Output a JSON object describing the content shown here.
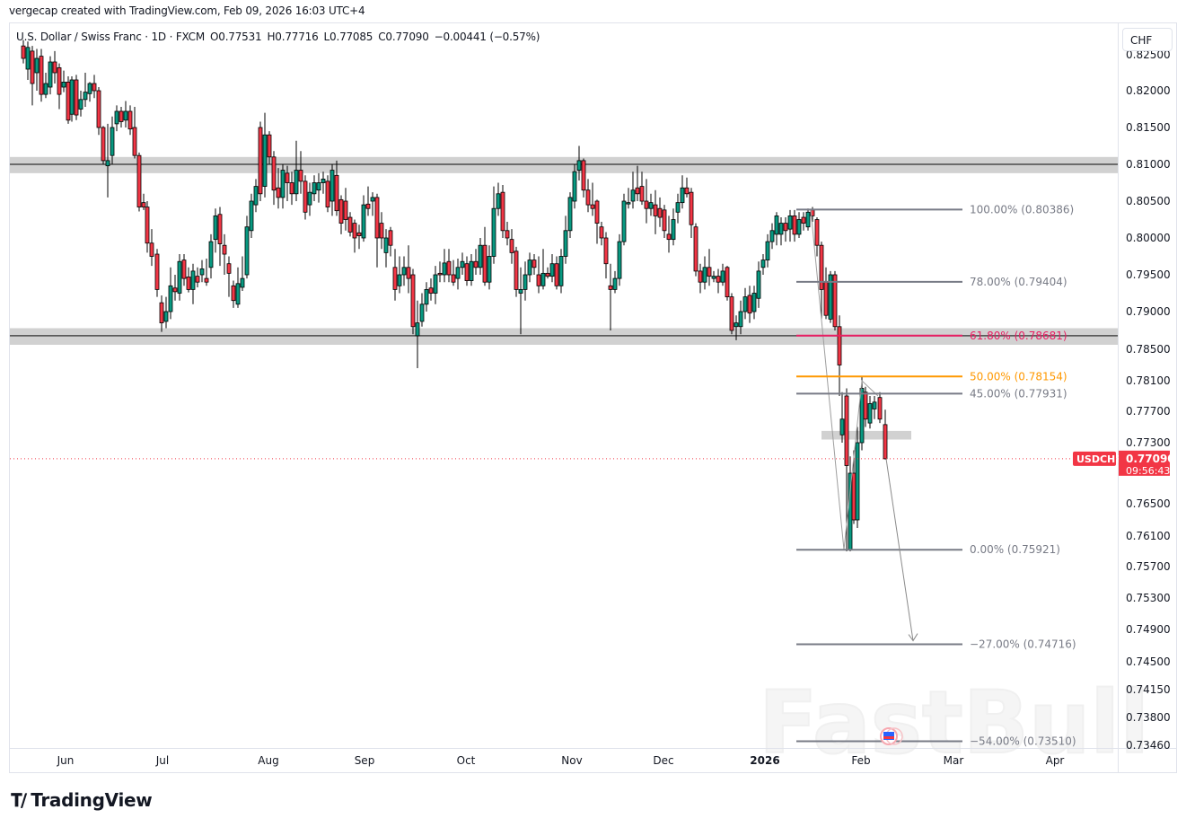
{
  "header": {
    "credit": "vergecap created with TradingView.com, Feb 09, 2026 16:03 UTC+4"
  },
  "legend": {
    "symbol": "U.S. Dollar / Swiss Franc · 1D · FXCM",
    "open": "O0.77531",
    "high": "H0.77716",
    "low": "L0.77085",
    "close": "C0.77090",
    "change": "−0.00441 (−0.57%)"
  },
  "currency_button": "CHF",
  "price_tag": {
    "symbol": "USDCHF",
    "price": "0.77090",
    "countdown": "09:56:43",
    "color": "#f23645"
  },
  "footer": {
    "brand": "TradingView",
    "watermark": "FastBull"
  },
  "colors": {
    "up": "#089981",
    "down": "#f23645",
    "zone": "#d1d1d1",
    "fib_grey": "#787b86",
    "fib_618": "#e91e63",
    "fib_50": "#ff9800"
  },
  "chart_data": {
    "type": "candlestick",
    "title": "U.S. Dollar / Swiss Franc · 1D · FXCM",
    "xlabel": "",
    "ylabel": "CHF",
    "ylim": [
      0.7346,
      0.825
    ],
    "grid": false,
    "x_ticks": [
      "Jun",
      "Jul",
      "Aug",
      "Sep",
      "Oct",
      "Nov",
      "Dec",
      "2026",
      "Feb",
      "Mar",
      "Apr"
    ],
    "y_ticks": [
      "0.82500",
      "0.82000",
      "0.81500",
      "0.81000",
      "0.80500",
      "0.80000",
      "0.79500",
      "0.79000",
      "0.78500",
      "0.78100",
      "0.77700",
      "0.77300",
      "0.76500",
      "0.76100",
      "0.75700",
      "0.75300",
      "0.74900",
      "0.74500",
      "0.74150",
      "0.73800",
      "0.73460"
    ],
    "last_price": 0.7709,
    "ohlc_last": {
      "open": 0.77531,
      "high": 0.77716,
      "low": 0.77085,
      "close": 0.7709,
      "change": -0.00441,
      "change_pct": -0.57
    },
    "zones": [
      {
        "name": "resistance",
        "price": 0.81,
        "top": 0.811,
        "bottom": 0.8088
      },
      {
        "name": "support",
        "price": 0.7868,
        "top": 0.7878,
        "bottom": 0.7856
      },
      {
        "name": "minor-zone",
        "price": 0.774,
        "top": 0.7745,
        "bottom": 0.7734
      }
    ],
    "fibonacci": [
      {
        "level": "100.00%",
        "price": 0.80386,
        "label": "100.00% (0.80386)"
      },
      {
        "level": "78.00%",
        "price": 0.79404,
        "label": "78.00% (0.79404)"
      },
      {
        "level": "61.80%",
        "price": 0.78681,
        "label": "61.80% (0.78681)"
      },
      {
        "level": "50.00%",
        "price": 0.78154,
        "label": "50.00% (0.78154)"
      },
      {
        "level": "45.00%",
        "price": 0.77931,
        "label": "45.00% (0.77931)"
      },
      {
        "level": "0.00%",
        "price": 0.75921,
        "label": "0.00% (0.75921)"
      },
      {
        "level": "-27.00%",
        "price": 0.74716,
        "label": "−27.00% (0.74716)"
      },
      {
        "level": "-54.00%",
        "price": 0.7351,
        "label": "−54.00% (0.73510)"
      }
    ],
    "projection_arrow": {
      "from_price": 0.7709,
      "to_price": 0.74716,
      "direction": "down"
    }
  }
}
